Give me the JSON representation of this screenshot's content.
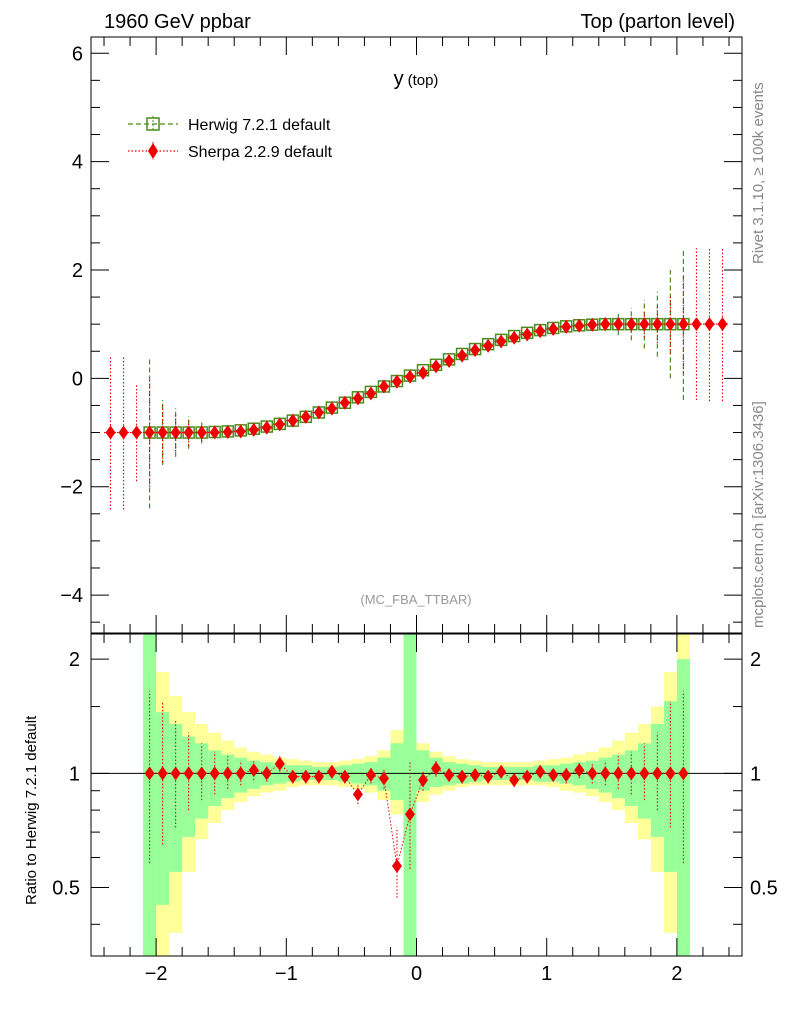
{
  "header": {
    "left": "1960 GeV ppbar",
    "right": "Top (parton level)"
  },
  "side": {
    "rivet": "Rivet 3.1.10, ≥ 100k events",
    "mcplots": "mcplots.cern.ch [arXiv:1306.3436]"
  },
  "chart_data": [
    {
      "type": "scatter",
      "title": "y",
      "title_sub": "(top)",
      "annotation": "(MC_FBA_TTBAR)",
      "xlabel": "",
      "ylabel": "",
      "xlim": [
        -2.5,
        2.5
      ],
      "ylim": [
        -4.7,
        6.3
      ],
      "xticks": [
        "−2",
        "−1",
        "0",
        "1",
        "2"
      ],
      "yticks": [
        "−4",
        "−2",
        "0",
        "2",
        "4",
        "6"
      ],
      "legend_position": "top-left",
      "series": [
        {
          "name": "Herwig 7.2.1 default",
          "color": "#4c8c1e",
          "marker": "open-square",
          "x": [
            -2.05,
            -1.95,
            -1.85,
            -1.75,
            -1.65,
            -1.55,
            -1.45,
            -1.35,
            -1.25,
            -1.15,
            -1.05,
            -0.95,
            -0.85,
            -0.75,
            -0.65,
            -0.55,
            -0.45,
            -0.35,
            -0.25,
            -0.15,
            -0.05,
            0.05,
            0.15,
            0.25,
            0.35,
            0.45,
            0.55,
            0.65,
            0.75,
            0.85,
            0.95,
            1.05,
            1.15,
            1.25,
            1.35,
            1.45,
            1.55,
            1.65,
            1.75,
            1.85,
            1.95,
            2.05
          ],
          "y": [
            -1.0,
            -1.0,
            -1.0,
            -1.0,
            -1.0,
            -0.99,
            -0.98,
            -0.96,
            -0.93,
            -0.89,
            -0.84,
            -0.78,
            -0.71,
            -0.63,
            -0.54,
            -0.45,
            -0.35,
            -0.25,
            -0.15,
            -0.05,
            0.05,
            0.15,
            0.25,
            0.35,
            0.45,
            0.54,
            0.63,
            0.71,
            0.78,
            0.84,
            0.89,
            0.93,
            0.96,
            0.98,
            0.99,
            1.0,
            1.0,
            1.0,
            1.0,
            1.0,
            1.0,
            1.0
          ],
          "err": [
            1.4,
            0.6,
            0.45,
            0.3,
            0.2,
            0.12,
            0.08,
            0.05,
            0.05,
            0.05,
            0.05,
            0.05,
            0.05,
            0.05,
            0.05,
            0.05,
            0.05,
            0.05,
            0.05,
            0.05,
            0.05,
            0.05,
            0.05,
            0.05,
            0.05,
            0.05,
            0.05,
            0.05,
            0.05,
            0.05,
            0.05,
            0.05,
            0.05,
            0.05,
            0.08,
            0.12,
            0.2,
            0.3,
            0.45,
            0.6,
            1.0,
            1.4
          ]
        },
        {
          "name": "Sherpa 2.2.9 default",
          "color": "#ee0000",
          "marker": "filled-diamond",
          "x": [
            -2.35,
            -2.25,
            -2.15,
            -2.05,
            -1.95,
            -1.85,
            -1.75,
            -1.65,
            -1.55,
            -1.45,
            -1.35,
            -1.25,
            -1.15,
            -1.05,
            -0.95,
            -0.85,
            -0.75,
            -0.65,
            -0.55,
            -0.45,
            -0.35,
            -0.25,
            -0.15,
            -0.05,
            0.05,
            0.15,
            0.25,
            0.35,
            0.45,
            0.55,
            0.65,
            0.75,
            0.85,
            0.95,
            1.05,
            1.15,
            1.25,
            1.35,
            1.45,
            1.55,
            1.65,
            1.75,
            1.85,
            1.95,
            2.05,
            2.15,
            2.25,
            2.35
          ],
          "y": [
            -1.0,
            -1.0,
            -1.0,
            -1.0,
            -1.0,
            -1.0,
            -1.0,
            -1.0,
            -1.0,
            -0.99,
            -0.98,
            -0.95,
            -0.91,
            -0.85,
            -0.78,
            -0.71,
            -0.63,
            -0.56,
            -0.45,
            -0.37,
            -0.28,
            -0.15,
            -0.06,
            0.03,
            0.1,
            0.22,
            0.32,
            0.42,
            0.52,
            0.6,
            0.68,
            0.75,
            0.81,
            0.87,
            0.91,
            0.95,
            0.97,
            0.99,
            1.0,
            1.0,
            1.0,
            1.0,
            1.0,
            1.0,
            1.0,
            1.0,
            1.0,
            1.0
          ],
          "err": [
            1.42,
            1.42,
            0.9,
            1.0,
            0.55,
            0.35,
            0.25,
            0.16,
            0.1,
            0.08,
            0.05,
            0.05,
            0.05,
            0.05,
            0.05,
            0.05,
            0.05,
            0.05,
            0.05,
            0.05,
            0.05,
            0.05,
            0.05,
            0.05,
            0.05,
            0.05,
            0.05,
            0.05,
            0.05,
            0.05,
            0.05,
            0.05,
            0.05,
            0.05,
            0.05,
            0.05,
            0.05,
            0.05,
            0.08,
            0.1,
            0.16,
            0.25,
            0.35,
            0.55,
            0.9,
            1.4,
            1.42,
            1.42
          ]
        }
      ]
    },
    {
      "type": "scatter",
      "ylabel": "Ratio to Herwig 7.2.1 default",
      "xlim": [
        -2.5,
        2.5
      ],
      "ylim": [
        0.33,
        2.33
      ],
      "log_y": true,
      "xticks": [
        "−2",
        "−1",
        "0",
        "1",
        "2"
      ],
      "yticks": [
        "0.5",
        "1",
        "2"
      ],
      "band": {
        "x": [
          -2.05,
          -1.95,
          -1.85,
          -1.75,
          -1.65,
          -1.55,
          -1.45,
          -1.35,
          -1.25,
          -1.15,
          -1.05,
          -0.95,
          -0.85,
          -0.75,
          -0.65,
          -0.55,
          -0.45,
          -0.35,
          -0.25,
          -0.15,
          -0.05,
          0.05,
          0.15,
          0.25,
          0.35,
          0.45,
          0.55,
          0.65,
          0.75,
          0.85,
          0.95,
          1.05,
          1.15,
          1.25,
          1.35,
          1.45,
          1.55,
          1.65,
          1.75,
          1.85,
          1.95,
          2.05
        ],
        "inner_lo": [
          0.33,
          0.45,
          0.55,
          0.68,
          0.76,
          0.82,
          0.86,
          0.89,
          0.91,
          0.93,
          0.94,
          0.95,
          0.96,
          0.96,
          0.96,
          0.95,
          0.94,
          0.93,
          0.9,
          0.85,
          0.33,
          0.9,
          0.92,
          0.93,
          0.94,
          0.95,
          0.96,
          0.96,
          0.96,
          0.96,
          0.95,
          0.95,
          0.94,
          0.93,
          0.91,
          0.89,
          0.86,
          0.82,
          0.76,
          0.68,
          0.55,
          0.33
        ],
        "inner_hi": [
          2.33,
          1.45,
          1.35,
          1.25,
          1.2,
          1.15,
          1.12,
          1.1,
          1.08,
          1.07,
          1.06,
          1.05,
          1.05,
          1.04,
          1.04,
          1.05,
          1.06,
          1.07,
          1.1,
          1.2,
          2.33,
          1.15,
          1.1,
          1.07,
          1.06,
          1.05,
          1.04,
          1.04,
          1.04,
          1.04,
          1.05,
          1.05,
          1.06,
          1.07,
          1.08,
          1.1,
          1.12,
          1.15,
          1.2,
          1.35,
          1.55,
          2.0
        ],
        "outer_lo": [
          0.33,
          0.33,
          0.38,
          0.55,
          0.67,
          0.74,
          0.8,
          0.84,
          0.87,
          0.89,
          0.9,
          0.92,
          0.93,
          0.93,
          0.93,
          0.92,
          0.91,
          0.89,
          0.85,
          0.78,
          0.33,
          0.84,
          0.88,
          0.9,
          0.92,
          0.93,
          0.93,
          0.93,
          0.93,
          0.93,
          0.93,
          0.92,
          0.9,
          0.89,
          0.87,
          0.84,
          0.8,
          0.74,
          0.67,
          0.55,
          0.38,
          0.33
        ],
        "outer_hi": [
          2.33,
          1.85,
          1.6,
          1.45,
          1.35,
          1.28,
          1.22,
          1.17,
          1.14,
          1.12,
          1.1,
          1.09,
          1.08,
          1.07,
          1.07,
          1.08,
          1.09,
          1.11,
          1.15,
          1.3,
          2.33,
          1.2,
          1.14,
          1.11,
          1.09,
          1.08,
          1.07,
          1.07,
          1.07,
          1.07,
          1.08,
          1.09,
          1.1,
          1.12,
          1.14,
          1.17,
          1.22,
          1.28,
          1.35,
          1.5,
          1.85,
          2.33
        ]
      },
      "series": [
        {
          "name": "Sherpa 2.2.9 default",
          "color": "#ee0000",
          "x": [
            -2.05,
            -1.95,
            -1.85,
            -1.75,
            -1.65,
            -1.55,
            -1.45,
            -1.35,
            -1.25,
            -1.15,
            -1.05,
            -0.95,
            -0.85,
            -0.75,
            -0.65,
            -0.55,
            -0.45,
            -0.35,
            -0.25,
            -0.15,
            -0.05,
            0.05,
            0.15,
            0.25,
            0.35,
            0.45,
            0.55,
            0.65,
            0.75,
            0.85,
            0.95,
            1.05,
            1.15,
            1.25,
            1.35,
            1.45,
            1.55,
            1.65,
            1.75,
            1.85,
            1.95,
            2.05
          ],
          "y": [
            1.0,
            1.0,
            1.0,
            1.0,
            1.0,
            1.0,
            1.0,
            1.0,
            1.02,
            1.0,
            1.06,
            0.98,
            0.98,
            0.98,
            1.01,
            0.98,
            0.88,
            0.99,
            0.97,
            0.57,
            0.78,
            0.96,
            1.03,
            0.99,
            0.98,
            0.99,
            0.98,
            1.01,
            0.96,
            0.98,
            1.01,
            0.99,
            0.99,
            1.02,
            1.0,
            1.0,
            1.0,
            1.0,
            1.0,
            1.0,
            1.0,
            1.0
          ],
          "err_lo": [
            0.42,
            0.35,
            0.28,
            0.2,
            0.15,
            0.12,
            0.09,
            0.07,
            0.06,
            0.05,
            0.05,
            0.04,
            0.04,
            0.04,
            0.04,
            0.04,
            0.05,
            0.05,
            0.06,
            0.1,
            0.22,
            0.06,
            0.05,
            0.04,
            0.04,
            0.04,
            0.04,
            0.04,
            0.04,
            0.04,
            0.04,
            0.04,
            0.05,
            0.05,
            0.06,
            0.07,
            0.09,
            0.12,
            0.15,
            0.2,
            0.28,
            0.42
          ],
          "err_hi": [
            0.65,
            0.55,
            0.38,
            0.28,
            0.2,
            0.14,
            0.11,
            0.08,
            0.06,
            0.05,
            0.05,
            0.04,
            0.04,
            0.04,
            0.04,
            0.04,
            0.05,
            0.05,
            0.06,
            0.15,
            0.3,
            0.06,
            0.05,
            0.04,
            0.04,
            0.04,
            0.04,
            0.04,
            0.04,
            0.04,
            0.04,
            0.04,
            0.05,
            0.05,
            0.06,
            0.08,
            0.11,
            0.14,
            0.2,
            0.28,
            0.55,
            0.65
          ]
        }
      ]
    }
  ]
}
